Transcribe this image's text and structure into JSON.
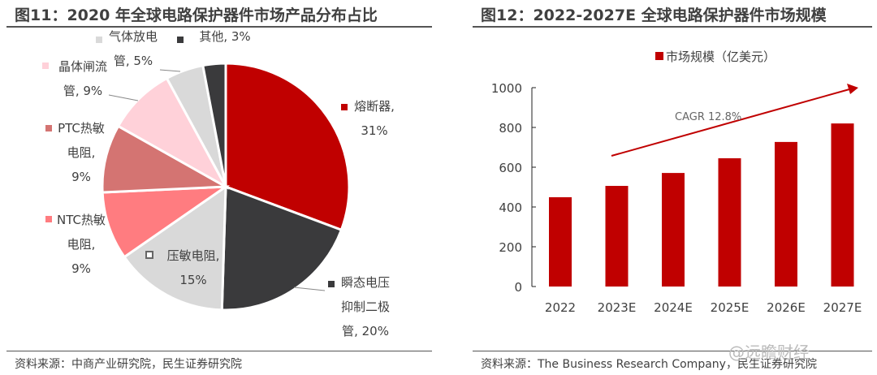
{
  "left": {
    "title": "图11：2020 年全球电路保护器件市场产品分布占比",
    "source": "资料来源：中商产业研究院，民生证券研究院"
  },
  "right": {
    "title": "图12：2022-2027E 全球电路保护器件市场规模",
    "source": "资料来源：The Business Research Company，民生证券研究院"
  },
  "watermark": "@远瞻财经",
  "chart_data": [
    {
      "type": "pie",
      "slices": [
        {
          "label": "熔断器",
          "value": 31,
          "color": "#C00000"
        },
        {
          "label": "瞬态电压抑制二极管",
          "value": 20,
          "color": "#3A3A3C"
        },
        {
          "label": "压敏电阻",
          "value": 15,
          "color": "#D9D9D9"
        },
        {
          "label": "NTC热敏电阻",
          "value": 9,
          "color": "#FF7C80"
        },
        {
          "label": "PTC热敏电阻",
          "value": 9,
          "color": "#D47472"
        },
        {
          "label": "晶体闸流管",
          "value": 9,
          "color": "#FFD1D9"
        },
        {
          "label": "气体放电管",
          "value": 5,
          "color": "#D9D9D9"
        },
        {
          "label": "其他",
          "value": 3,
          "color": "#3A3A3C"
        }
      ]
    },
    {
      "type": "bar",
      "categories": [
        "2022",
        "2023E",
        "2024E",
        "2025E",
        "2026E",
        "2027E"
      ],
      "series": [
        {
          "name": "市场规模（亿美元）",
          "values": [
            449,
            506,
            571,
            645,
            727,
            820
          ],
          "color": "#C00000"
        }
      ],
      "ylim": [
        0,
        1000
      ],
      "yticks": [
        0,
        200,
        400,
        600,
        800,
        1000
      ],
      "annotation": "CAGR 12.8%",
      "legend": "top"
    }
  ]
}
